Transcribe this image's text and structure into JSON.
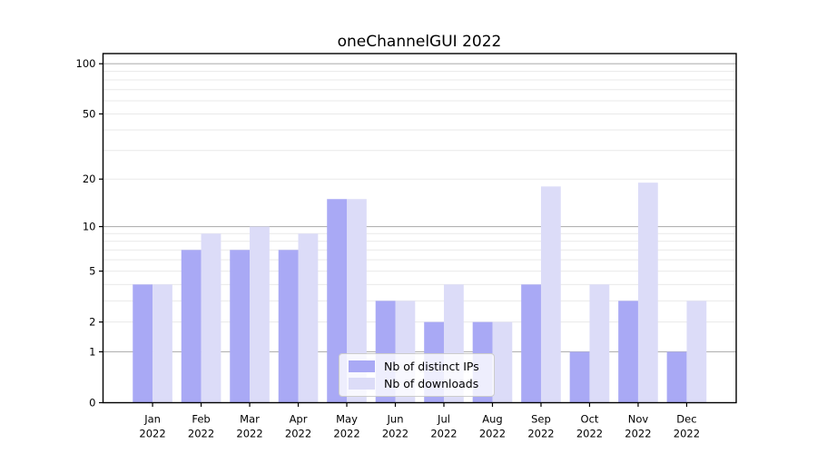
{
  "chart_data": {
    "type": "bar",
    "title": "oneChannelGUI 2022",
    "categories": [
      "Jan",
      "Feb",
      "Mar",
      "Apr",
      "May",
      "Jun",
      "Jul",
      "Aug",
      "Sep",
      "Oct",
      "Nov",
      "Dec"
    ],
    "year_label": "2022",
    "series": [
      {
        "name": "Nb of distinct IPs",
        "color": "#a9a9f5",
        "values": [
          4,
          7,
          7,
          7,
          15,
          3,
          2,
          2,
          4,
          1,
          3,
          1
        ]
      },
      {
        "name": "Nb of downloads",
        "color": "#dcdcf8",
        "values": [
          4,
          9,
          10,
          9,
          15,
          3,
          4,
          2,
          18,
          4,
          19,
          3
        ]
      }
    ],
    "yscale": "log1p",
    "yticks": [
      0,
      1,
      2,
      5,
      10,
      20,
      50,
      100
    ],
    "ylim": [
      0,
      115
    ],
    "grid": {
      "major_values": [
        1,
        10,
        100
      ],
      "minor_values": [
        2,
        3,
        4,
        5,
        6,
        7,
        8,
        9,
        20,
        30,
        40,
        50,
        60,
        70,
        80,
        90
      ],
      "major_color": "#b3b3b3",
      "minor_color": "#e9e9e9"
    },
    "legend_position": "lower center",
    "axis_color": "#000000",
    "background_color": "#ffffff"
  }
}
